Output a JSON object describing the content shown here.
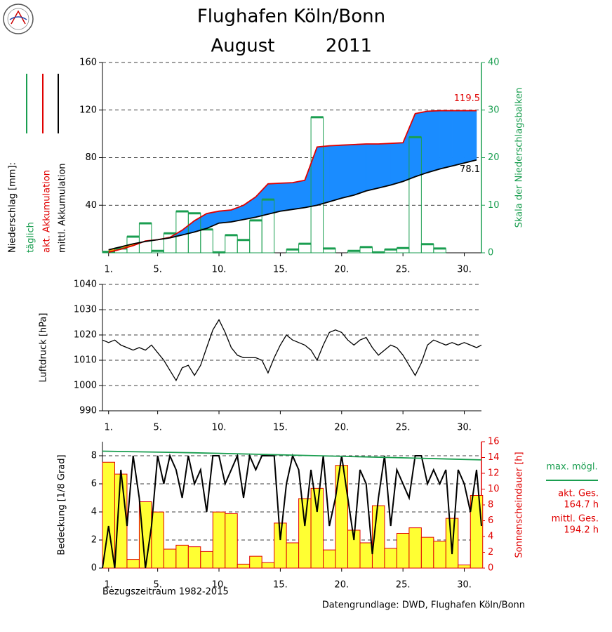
{
  "title": "Flughafen Köln/Bonn",
  "month": "August",
  "year": "2011",
  "source": "Datengrundlage: DWD, Flughafen Köln/Bonn",
  "chart_data": [
    {
      "type": "accumulation",
      "ylabel": "Niederschlag [mm]:",
      "y2label": "Skala der Niederschlagsbalken",
      "xlim": [
        0.5,
        31.4
      ],
      "ylim": [
        0,
        160
      ],
      "yticks": [
        40,
        80,
        120,
        160
      ],
      "y2lim": [
        0,
        40
      ],
      "y2ticks": [
        0,
        10,
        20,
        30,
        40
      ],
      "grid": true,
      "xticks": [
        {
          "value": 1,
          "label": "1."
        },
        {
          "value": 5,
          "label": "5."
        },
        {
          "value": 10,
          "label": "10."
        },
        {
          "value": 15,
          "label": "15."
        },
        {
          "value": 20,
          "label": "20."
        },
        {
          "value": 25,
          "label": "25."
        },
        {
          "value": 30,
          "label": "30."
        }
      ],
      "fill_colors": {
        "above": "#1a8cff",
        "below": "#ffb000"
      },
      "series": [
        {
          "name": "täglich",
          "color": "#1a9e50",
          "axis": "y2",
          "kind": "bar",
          "x": [
            1,
            2,
            3,
            4,
            5,
            6,
            7,
            8,
            9,
            10,
            11,
            12,
            13,
            14,
            15,
            16,
            17,
            18,
            19,
            20,
            21,
            22,
            23,
            24,
            25,
            26,
            27,
            28,
            29,
            30,
            31
          ],
          "values": [
            0.2,
            0.9,
            3.4,
            6.2,
            0.4,
            4.1,
            8.7,
            8.3,
            4.9,
            0.1,
            3.7,
            2.7,
            6.8,
            11.2,
            0,
            0.7,
            1.9,
            28.5,
            0.9,
            0,
            0.4,
            1.2,
            0.1,
            0.7,
            1.0,
            24.3,
            1.8,
            0.9,
            0,
            0,
            0
          ]
        },
        {
          "name": "akt. Akkumulation",
          "color": "#e00000",
          "kind": "line",
          "x": [
            1,
            2,
            3,
            4,
            5,
            6,
            7,
            8,
            9,
            10,
            11,
            12,
            13,
            14,
            15,
            16,
            17,
            18,
            19,
            20,
            21,
            22,
            23,
            24,
            25,
            26,
            27,
            28,
            29,
            30,
            31
          ],
          "values": [
            0.5,
            3,
            6,
            10,
            11,
            13,
            19,
            27,
            33,
            35,
            36,
            40,
            47,
            58,
            58.5,
            59,
            61,
            89,
            90,
            90.5,
            91,
            91.5,
            91.5,
            92,
            92.5,
            117,
            119,
            119.5,
            119.5,
            119.5,
            119.5
          ]
        },
        {
          "name": "mittl. Akkumulation",
          "color": "#000000",
          "kind": "line",
          "x": [
            1,
            2,
            3,
            4,
            5,
            6,
            7,
            8,
            9,
            10,
            11,
            12,
            13,
            14,
            15,
            16,
            17,
            18,
            19,
            20,
            21,
            22,
            23,
            24,
            25,
            26,
            27,
            28,
            29,
            30,
            31
          ],
          "values": [
            2.5,
            5,
            7.5,
            9.5,
            11,
            12.5,
            15,
            17.5,
            20.5,
            25,
            26,
            28,
            30,
            32.5,
            35,
            36.5,
            38,
            40,
            43,
            46,
            48.5,
            52,
            54.5,
            57,
            60,
            64,
            67.5,
            70.5,
            73,
            75.5,
            78.1
          ]
        }
      ],
      "annotations": [
        {
          "value": 119.5,
          "color": "#e00000"
        },
        {
          "value": 78.1,
          "color": "#000000"
        }
      ]
    },
    {
      "type": "line",
      "ylabel": "Luftdruck [hPa]",
      "color": "#000000",
      "xlim": [
        0.5,
        31.4
      ],
      "ylim": [
        990,
        1040
      ],
      "yticks": [
        990,
        1000,
        1010,
        1020,
        1030,
        1040
      ],
      "grid": true,
      "xticks": [
        {
          "value": 1,
          "label": "1."
        },
        {
          "value": 5,
          "label": "5."
        },
        {
          "value": 10,
          "label": "10."
        },
        {
          "value": 15,
          "label": "15."
        },
        {
          "value": 20,
          "label": "20."
        },
        {
          "value": 25,
          "label": "25."
        },
        {
          "value": 30,
          "label": "30."
        }
      ],
      "x": [
        0.5,
        1,
        1.5,
        2,
        2.5,
        3,
        3.5,
        4,
        4.5,
        5,
        5.5,
        6,
        6.5,
        7,
        7.5,
        8,
        8.5,
        9,
        9.5,
        10,
        10.5,
        11,
        11.5,
        12,
        12.5,
        13,
        13.5,
        14,
        14.5,
        15,
        15.5,
        16,
        16.5,
        17,
        17.5,
        18,
        18.5,
        19,
        19.5,
        20,
        20.5,
        21,
        21.5,
        22,
        22.5,
        23,
        23.5,
        24,
        24.5,
        25,
        25.5,
        26,
        26.5,
        27,
        27.5,
        28,
        28.5,
        29,
        29.5,
        30,
        30.5,
        31,
        31.4
      ],
      "values": [
        1018,
        1017,
        1018,
        1016,
        1015,
        1014,
        1015,
        1014,
        1016,
        1013,
        1010,
        1006,
        1002,
        1007,
        1008,
        1004,
        1008,
        1015,
        1022,
        1026,
        1021,
        1015,
        1012,
        1011,
        1011,
        1011,
        1010,
        1005,
        1011,
        1016,
        1020,
        1018,
        1017,
        1016,
        1014,
        1010,
        1016,
        1021,
        1022,
        1021,
        1018,
        1016,
        1018,
        1019,
        1015,
        1012,
        1014,
        1016,
        1015,
        1012,
        1008,
        1004,
        1009,
        1016,
        1018,
        1017,
        1016,
        1017,
        1016,
        1017,
        1016,
        1015,
        1016
      ]
    },
    {
      "type": "combo",
      "ylabel": "Bedeckung [1/8 Grad]",
      "y2label": "Sonnenscheindauer [h]",
      "note": "Bezugszeitraum 1982-2015",
      "xlim": [
        0.5,
        31.4
      ],
      "ylim": [
        0,
        9
      ],
      "yticks": [
        0,
        2,
        4,
        6,
        8
      ],
      "y2lim": [
        0,
        16
      ],
      "y2ticks": [
        0,
        2,
        4,
        6,
        8,
        10,
        12,
        14,
        16
      ],
      "grid": true,
      "y2color": "#e00000",
      "xticks": [
        {
          "value": 1,
          "label": "1."
        },
        {
          "value": 5,
          "label": "5."
        },
        {
          "value": 10,
          "label": "10."
        },
        {
          "value": 15,
          "label": "15."
        },
        {
          "value": 20,
          "label": "20."
        },
        {
          "value": 25,
          "label": "25."
        },
        {
          "value": 30,
          "label": "30."
        }
      ],
      "series": [
        {
          "color": "#ffff33",
          "edge": "#e00000",
          "axis": "y2",
          "kind": "bar",
          "x": [
            1,
            2,
            3,
            4,
            5,
            6,
            7,
            8,
            9,
            10,
            11,
            12,
            13,
            14,
            15,
            16,
            17,
            18,
            19,
            20,
            21,
            22,
            23,
            24,
            25,
            26,
            27,
            28,
            29,
            30,
            31
          ],
          "values": [
            13.4,
            11.9,
            1.1,
            8.4,
            7.1,
            2.4,
            2.9,
            2.7,
            2.1,
            7.1,
            6.9,
            0.5,
            1.5,
            0.7,
            5.7,
            3.2,
            8.8,
            10.1,
            2.3,
            13.0,
            4.8,
            3.2,
            7.9,
            2.5,
            4.4,
            5.1,
            3.9,
            3.4,
            6.3,
            0.4,
            9.2
          ]
        },
        {
          "color": "#000000",
          "kind": "line",
          "x": [
            0.5,
            1,
            1.5,
            2,
            2.5,
            3,
            3.5,
            4,
            4.5,
            5,
            5.5,
            6,
            6.5,
            7,
            7.5,
            8,
            8.5,
            9,
            9.5,
            10,
            10.5,
            11,
            11.5,
            12,
            12.5,
            13,
            13.5,
            14,
            14.5,
            15,
            15.5,
            16,
            16.5,
            17,
            17.5,
            18,
            18.5,
            19,
            19.5,
            20,
            20.5,
            21,
            21.5,
            22,
            22.5,
            23,
            23.5,
            24,
            24.5,
            25,
            25.5,
            26,
            26.5,
            27,
            27.5,
            28,
            28.5,
            29,
            29.5,
            30,
            30.5,
            31,
            31.4
          ],
          "values": [
            0,
            3,
            0,
            7,
            3,
            8,
            5,
            0,
            3,
            8,
            6,
            8,
            7,
            5,
            8,
            6,
            7,
            4,
            8,
            8,
            6,
            7,
            8,
            5,
            8,
            7,
            8,
            8,
            8,
            2,
            6,
            8,
            7,
            3,
            7,
            4,
            8,
            3,
            5,
            8,
            5,
            2,
            7,
            6,
            1,
            5,
            8,
            3,
            7,
            6,
            5,
            8,
            8,
            6,
            7,
            6,
            7,
            1,
            7,
            6,
            4,
            7,
            3
          ]
        },
        {
          "name": "max. mögl.",
          "color": "#1a9e50",
          "axis": "y2",
          "kind": "line",
          "x": [
            0.5,
            8,
            16,
            24,
            31.4
          ],
          "values": [
            14.8,
            14.6,
            14.3,
            14.0,
            13.7
          ]
        }
      ],
      "totals": [
        {
          "name": "akt. Ges.",
          "value": 164.7,
          "value_label": "164.7 h"
        },
        {
          "name": "mittl. Ges.",
          "value": 194.2,
          "value_label": "194.2 h"
        }
      ]
    }
  ]
}
